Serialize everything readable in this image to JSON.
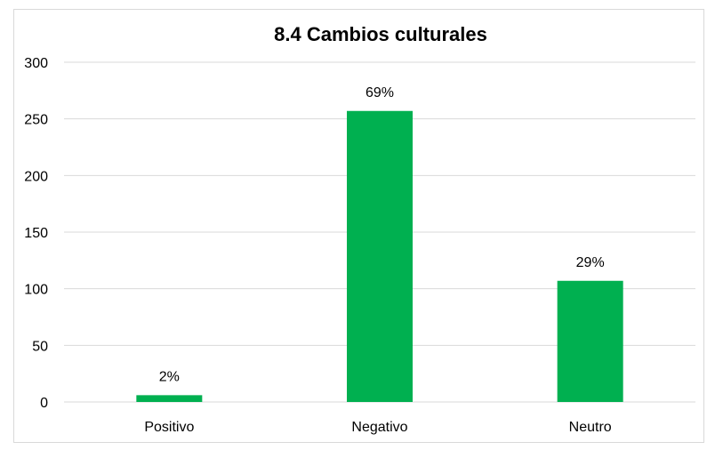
{
  "chart_data": {
    "type": "bar",
    "title": "8.4 Cambios culturales",
    "categories": [
      "Positivo",
      "Negativo",
      "Neutro"
    ],
    "values": [
      6,
      257,
      107
    ],
    "data_labels": [
      "2%",
      "69%",
      "29%"
    ],
    "ylim": [
      0,
      300
    ],
    "yticks": [
      0,
      50,
      100,
      150,
      200,
      250,
      300
    ],
    "grid": true,
    "legend": "none",
    "bar_color": "#00b050",
    "grid_color": "#d9d9d9"
  }
}
